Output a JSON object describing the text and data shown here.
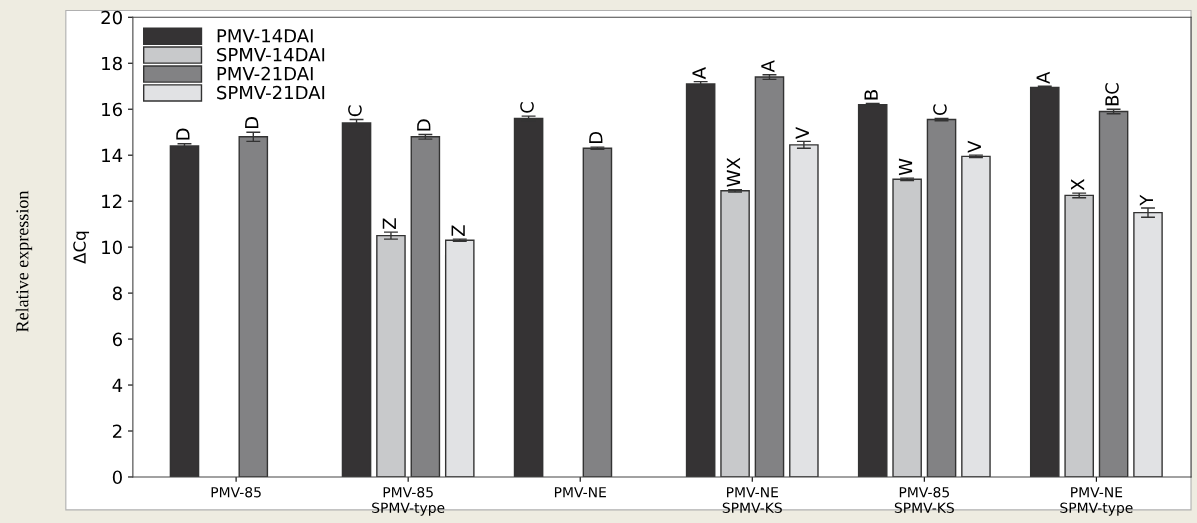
{
  "chart_data": {
    "type": "bar",
    "ylabel": "ΔCq",
    "annotations": [
      "Relative expression"
    ],
    "categories": [
      "PMV-85",
      "PMV-85\nSPMV-type",
      "PMV-NE",
      "PMV-NE\nSPMV-KS",
      "PMV-85\nSPMV-KS",
      "PMV-NE\nSPMV-type"
    ],
    "series": [
      {
        "name": "PMV-14DAI",
        "color": "#353334",
        "values": [
          14.4,
          15.4,
          15.6,
          17.1,
          16.2,
          16.95
        ],
        "errors": [
          0.1,
          0.15,
          0.1,
          0.1,
          0.05,
          0.05
        ],
        "value_labels": [
          "D",
          "C",
          "C",
          "A",
          "B",
          "A"
        ]
      },
      {
        "name": "SPMV-14DAI",
        "color": "#c8c9cb",
        "values": [
          null,
          10.5,
          null,
          12.45,
          12.95,
          12.25
        ],
        "errors": [
          null,
          0.15,
          null,
          0.05,
          0.05,
          0.1
        ],
        "value_labels": [
          null,
          "Z",
          null,
          "WX",
          "W",
          "X"
        ]
      },
      {
        "name": "PMV-21DAI",
        "color": "#828284",
        "values": [
          14.8,
          14.8,
          14.3,
          17.4,
          15.55,
          15.9
        ],
        "errors": [
          0.2,
          0.1,
          0.05,
          0.1,
          0.05,
          0.1
        ],
        "value_labels": [
          "D",
          "D",
          "D",
          "A",
          "C",
          "BC"
        ]
      },
      {
        "name": "SPMV-21DAI",
        "color": "#e1e2e4",
        "values": [
          null,
          10.3,
          null,
          14.45,
          13.95,
          11.5
        ],
        "errors": [
          null,
          0.05,
          null,
          0.15,
          0.05,
          0.2
        ],
        "value_labels": [
          null,
          "Z",
          null,
          "V",
          "V",
          "Y"
        ]
      }
    ],
    "ylim": [
      0,
      20
    ],
    "yticks": [
      0,
      2,
      4,
      6,
      8,
      10,
      12,
      14,
      16,
      18,
      20
    ],
    "grid": false,
    "legend": "top left"
  }
}
